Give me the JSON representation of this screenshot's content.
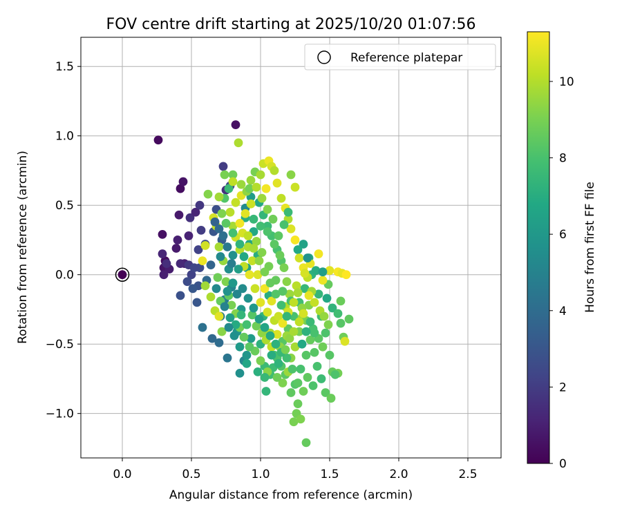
{
  "chart_data": {
    "type": "scatter",
    "title": "FOV centre drift starting at 2025/10/20 01:07:56",
    "xlabel": "Angular distance from reference (arcmin)",
    "ylabel": "Rotation from reference (arcmin)",
    "xlim": [
      -0.3,
      2.74
    ],
    "ylim": [
      -1.32,
      1.71
    ],
    "xticks": [
      0.0,
      0.5,
      1.0,
      1.5,
      2.0,
      2.5
    ],
    "yticks": [
      -1.0,
      -0.5,
      0.0,
      0.5,
      1.0,
      1.5
    ],
    "xtick_labels": [
      "0.0",
      "0.5",
      "1.0",
      "1.5",
      "2.0",
      "2.5"
    ],
    "ytick_labels": [
      "−1.0",
      "−0.5",
      "0.0",
      "0.5",
      "1.0",
      "1.5"
    ],
    "grid": true,
    "legend": {
      "position": "top-right",
      "label": "Reference platepar"
    },
    "reference_point": {
      "x": 0.0,
      "y": 0.0,
      "hours": 0
    },
    "colorbar": {
      "label": "Hours from first FF file",
      "range": [
        0,
        11.3
      ],
      "ticks": [
        0,
        2,
        4,
        6,
        8,
        10
      ],
      "tick_labels": [
        "0",
        "2",
        "4",
        "6",
        "8",
        "10"
      ],
      "colormap": "viridis"
    },
    "points": [
      [
        0.26,
        0.97,
        0.3
      ],
      [
        0.82,
        1.08,
        0.5
      ],
      [
        0.31,
        0.1,
        0.4
      ],
      [
        0.3,
        0.05,
        0.6
      ],
      [
        0.29,
        0.29,
        0.5
      ],
      [
        0.34,
        0.04,
        0.9
      ],
      [
        0.3,
        0.0,
        1.0
      ],
      [
        0.29,
        0.15,
        1.2
      ],
      [
        0.32,
        0.08,
        1.5
      ],
      [
        0.42,
        0.62,
        0.4
      ],
      [
        0.44,
        0.67,
        0.6
      ],
      [
        0.39,
        0.19,
        0.8
      ],
      [
        0.4,
        0.25,
        1.0
      ],
      [
        0.41,
        0.43,
        0.8
      ],
      [
        0.45,
        0.08,
        1.0
      ],
      [
        0.42,
        0.08,
        1.3
      ],
      [
        0.48,
        0.28,
        1.1
      ],
      [
        0.49,
        0.41,
        1.6
      ],
      [
        0.53,
        0.45,
        1.2
      ],
      [
        0.48,
        0.07,
        1.9
      ],
      [
        0.5,
        0.0,
        2.2
      ],
      [
        0.47,
        -0.05,
        2.6
      ],
      [
        0.42,
        -0.15,
        2.8
      ],
      [
        0.55,
        -0.08,
        2.9
      ],
      [
        0.51,
        -0.1,
        3.1
      ],
      [
        0.55,
        0.18,
        2.2
      ],
      [
        0.56,
        0.05,
        2.5
      ],
      [
        0.54,
        -0.2,
        3.0
      ],
      [
        0.57,
        0.32,
        2.0
      ],
      [
        0.6,
        0.22,
        2.7
      ],
      [
        0.56,
        0.5,
        1.8
      ],
      [
        0.52,
        0.05,
        2.4
      ],
      [
        0.73,
        0.78,
        2.0
      ],
      [
        0.78,
        0.64,
        2.4
      ],
      [
        0.75,
        0.61,
        1.6
      ],
      [
        0.68,
        0.47,
        2.7
      ],
      [
        0.66,
        0.31,
        3.0
      ],
      [
        0.72,
        0.25,
        3.3
      ],
      [
        0.64,
        0.07,
        3.6
      ],
      [
        0.61,
        -0.04,
        3.8
      ],
      [
        0.58,
        -0.38,
        4.2
      ],
      [
        0.65,
        -0.46,
        3.8
      ],
      [
        0.7,
        -0.49,
        4.0
      ],
      [
        0.76,
        -0.6,
        4.4
      ],
      [
        0.71,
        -0.3,
        4.6
      ],
      [
        0.74,
        -0.18,
        4.8
      ],
      [
        0.79,
        -0.09,
        5.1
      ],
      [
        0.68,
        -0.1,
        5.3
      ],
      [
        0.77,
        0.04,
        5.5
      ],
      [
        0.8,
        0.14,
        5.6
      ],
      [
        0.83,
        -0.41,
        5.8
      ],
      [
        0.85,
        -0.71,
        5.6
      ],
      [
        0.88,
        -0.62,
        5.2
      ],
      [
        0.9,
        -0.58,
        5.9
      ],
      [
        0.93,
        -0.46,
        6.2
      ],
      [
        0.86,
        -0.25,
        6.0
      ],
      [
        0.9,
        0.05,
        6.4
      ],
      [
        0.92,
        0.22,
        6.6
      ],
      [
        0.95,
        0.31,
        6.8
      ],
      [
        0.98,
        0.14,
        7.0
      ],
      [
        0.89,
        0.48,
        5.4
      ],
      [
        0.93,
        0.56,
        6.2
      ],
      [
        0.99,
        0.52,
        6.8
      ],
      [
        1.02,
        0.43,
        7.4
      ],
      [
        1.05,
        0.35,
        7.6
      ],
      [
        1.08,
        0.28,
        7.9
      ],
      [
        1.12,
        0.18,
        8.0
      ],
      [
        1.15,
        0.1,
        8.2
      ],
      [
        1.06,
        -0.15,
        7.0
      ],
      [
        1.02,
        -0.3,
        7.3
      ],
      [
        1.0,
        -0.5,
        7.2
      ],
      [
        1.03,
        -0.66,
        7.6
      ],
      [
        1.07,
        -0.72,
        7.8
      ],
      [
        1.04,
        -0.84,
        7.4
      ],
      [
        1.12,
        -0.6,
        8.1
      ],
      [
        1.16,
        -0.48,
        8.3
      ],
      [
        1.2,
        -0.39,
        8.5
      ],
      [
        1.24,
        -0.3,
        8.0
      ],
      [
        1.28,
        -0.2,
        7.8
      ],
      [
        1.32,
        -0.1,
        7.5
      ],
      [
        1.37,
        0.0,
        7.2
      ],
      [
        1.35,
        0.12,
        6.9
      ],
      [
        1.31,
        0.22,
        6.5
      ],
      [
        1.27,
        0.18,
        6.8
      ],
      [
        1.4,
        0.03,
        7.0
      ],
      [
        1.42,
        -0.14,
        7.4
      ],
      [
        1.44,
        -0.3,
        7.8
      ],
      [
        1.47,
        -0.42,
        8.1
      ],
      [
        1.5,
        -0.58,
        8.3
      ],
      [
        1.52,
        -0.7,
        8.6
      ],
      [
        1.47,
        -0.85,
        8.4
      ],
      [
        1.51,
        -0.89,
        8.7
      ],
      [
        1.56,
        -0.71,
        8.9
      ],
      [
        1.54,
        -0.72,
        8.1
      ],
      [
        1.6,
        -0.45,
        8.8
      ],
      [
        1.64,
        -0.32,
        8.5
      ],
      [
        1.58,
        -0.19,
        8.7
      ],
      [
        1.49,
        -0.07,
        8.6
      ],
      [
        1.38,
        -0.39,
        8.0
      ],
      [
        1.33,
        -0.58,
        8.3
      ],
      [
        1.29,
        -0.68,
        8.0
      ],
      [
        1.25,
        -0.79,
        8.2
      ],
      [
        1.22,
        -0.85,
        8.5
      ],
      [
        1.27,
        -0.93,
        8.7
      ],
      [
        1.26,
        -1.0,
        8.9
      ],
      [
        1.24,
        -1.06,
        9.0
      ],
      [
        1.29,
        -1.04,
        9.1
      ],
      [
        1.33,
        -1.21,
        8.6
      ],
      [
        1.18,
        -0.72,
        8.4
      ],
      [
        1.15,
        -0.66,
        8.2
      ],
      [
        1.1,
        -0.58,
        8.0
      ],
      [
        1.09,
        -0.67,
        7.7
      ],
      [
        1.14,
        -0.52,
        9.4
      ],
      [
        1.19,
        -0.44,
        9.6
      ],
      [
        1.07,
        -0.42,
        9.8
      ],
      [
        1.1,
        -0.33,
        10.2
      ],
      [
        1.05,
        -0.27,
        10.6
      ],
      [
        1.0,
        -0.2,
        10.8
      ],
      [
        0.96,
        -0.1,
        10.4
      ],
      [
        0.92,
        0.0,
        10.9
      ],
      [
        0.88,
        0.06,
        10.2
      ],
      [
        0.85,
        0.18,
        10.0
      ],
      [
        0.82,
        0.27,
        10.5
      ],
      [
        0.8,
        0.35,
        9.8
      ],
      [
        0.78,
        0.45,
        10.1
      ],
      [
        0.82,
        0.52,
        10.3
      ],
      [
        0.86,
        0.57,
        10.8
      ],
      [
        0.9,
        0.6,
        9.4
      ],
      [
        0.93,
        0.68,
        9.6
      ],
      [
        0.96,
        0.74,
        9.0
      ],
      [
        1.02,
        0.8,
        10.4
      ],
      [
        1.06,
        0.82,
        11.0
      ],
      [
        1.08,
        0.78,
        10.6
      ],
      [
        1.04,
        0.62,
        11.1
      ],
      [
        1.12,
        0.66,
        10.8
      ],
      [
        1.15,
        0.55,
        10.2
      ],
      [
        1.18,
        0.48,
        10.9
      ],
      [
        1.2,
        0.4,
        9.9
      ],
      [
        1.22,
        0.33,
        10.7
      ],
      [
        1.25,
        0.25,
        11.2
      ],
      [
        1.28,
        0.12,
        10.5
      ],
      [
        1.31,
        0.05,
        11.0
      ],
      [
        1.34,
        -0.02,
        10.2
      ],
      [
        1.37,
        -0.12,
        9.7
      ],
      [
        1.35,
        -0.22,
        9.2
      ],
      [
        1.3,
        -0.31,
        9.5
      ],
      [
        1.28,
        -0.41,
        9.0
      ],
      [
        1.25,
        -0.52,
        9.8
      ],
      [
        1.22,
        -0.6,
        9.3
      ],
      [
        1.2,
        -0.7,
        9.6
      ],
      [
        1.16,
        -0.78,
        9.1
      ],
      [
        1.12,
        -0.74,
        8.8
      ],
      [
        1.05,
        -0.7,
        9.3
      ],
      [
        1.0,
        -0.62,
        9.0
      ],
      [
        0.96,
        -0.55,
        8.7
      ],
      [
        0.92,
        -0.52,
        8.4
      ],
      [
        0.88,
        -0.45,
        8.6
      ],
      [
        0.85,
        -0.38,
        8.9
      ],
      [
        0.82,
        -0.28,
        9.2
      ],
      [
        0.79,
        -0.22,
        9.0
      ],
      [
        0.77,
        -0.15,
        8.5
      ],
      [
        0.75,
        -0.05,
        9.1
      ],
      [
        0.73,
        0.1,
        9.5
      ],
      [
        0.7,
        0.2,
        9.8
      ],
      [
        0.68,
        0.35,
        10.3
      ],
      [
        0.66,
        0.41,
        10.6
      ],
      [
        0.62,
        0.58,
        9.2
      ],
      [
        0.6,
        0.21,
        10.5
      ],
      [
        0.58,
        0.1,
        11.0
      ],
      [
        0.6,
        -0.08,
        9.7
      ],
      [
        0.64,
        -0.16,
        9.9
      ],
      [
        0.67,
        -0.26,
        10.1
      ],
      [
        0.7,
        -0.3,
        10.8
      ],
      [
        0.72,
        -0.41,
        9.3
      ],
      [
        0.71,
        -0.19,
        8.6
      ],
      [
        0.69,
        -0.02,
        8.8
      ],
      [
        0.74,
        0.55,
        8.2
      ],
      [
        0.77,
        0.62,
        7.6
      ],
      [
        0.8,
        0.72,
        8.8
      ],
      [
        0.84,
        0.95,
        9.9
      ],
      [
        0.89,
        0.41,
        7.0
      ],
      [
        0.95,
        0.4,
        7.5
      ],
      [
        1.0,
        0.35,
        7.8
      ],
      [
        1.05,
        0.31,
        8.1
      ],
      [
        1.1,
        0.22,
        8.4
      ],
      [
        1.14,
        0.14,
        8.7
      ],
      [
        1.17,
        0.05,
        9.0
      ],
      [
        1.19,
        -0.05,
        9.3
      ],
      [
        1.21,
        -0.14,
        9.6
      ],
      [
        1.18,
        -0.23,
        10.0
      ],
      [
        1.13,
        -0.3,
        10.4
      ],
      [
        1.08,
        -0.19,
        10.8
      ],
      [
        1.03,
        -0.1,
        11.1
      ],
      [
        0.98,
        0.0,
        10.7
      ],
      [
        0.94,
        0.1,
        10.3
      ],
      [
        0.91,
        0.2,
        9.9
      ],
      [
        0.97,
        0.24,
        9.5
      ],
      [
        1.01,
        0.16,
        9.2
      ],
      [
        1.06,
        0.06,
        8.9
      ],
      [
        1.11,
        -0.04,
        8.6
      ],
      [
        1.16,
        -0.12,
        8.3
      ],
      [
        1.22,
        -0.19,
        8.0
      ],
      [
        1.26,
        -0.08,
        10.1
      ],
      [
        1.32,
        0.01,
        10.6
      ],
      [
        1.36,
        0.08,
        10.9
      ],
      [
        1.42,
        0.15,
        11.1
      ],
      [
        1.45,
        -0.04,
        11.0
      ],
      [
        1.5,
        0.03,
        10.8
      ],
      [
        1.56,
        0.02,
        11.2
      ],
      [
        1.59,
        0.01,
        10.9
      ],
      [
        1.62,
        0.0,
        11.3
      ],
      [
        1.61,
        -0.48,
        10.7
      ],
      [
        1.25,
        0.63,
        10.4
      ],
      [
        1.22,
        0.72,
        9.3
      ],
      [
        1.1,
        0.75,
        10.0
      ],
      [
        1.0,
        0.72,
        9.8
      ],
      [
        0.92,
        0.62,
        8.9
      ],
      [
        0.86,
        0.65,
        9.6
      ],
      [
        0.8,
        0.67,
        10.2
      ],
      [
        0.74,
        0.72,
        9.0
      ],
      [
        0.7,
        0.56,
        9.7
      ],
      [
        0.72,
        0.44,
        9.1
      ],
      [
        0.75,
        0.37,
        8.4
      ],
      [
        0.8,
        0.3,
        7.9
      ],
      [
        0.85,
        0.22,
        7.3
      ],
      [
        0.88,
        0.13,
        6.8
      ],
      [
        0.84,
        0.04,
        6.3
      ],
      [
        0.8,
        -0.06,
        6.0
      ],
      [
        0.76,
        -0.12,
        5.7
      ],
      [
        0.78,
        -0.31,
        6.3
      ],
      [
        0.82,
        -0.36,
        6.9
      ],
      [
        0.86,
        -0.29,
        7.4
      ],
      [
        0.9,
        -0.36,
        7.9
      ],
      [
        0.94,
        -0.29,
        8.3
      ],
      [
        0.97,
        -0.37,
        8.8
      ],
      [
        1.01,
        -0.42,
        9.4
      ],
      [
        1.04,
        -0.47,
        9.9
      ],
      [
        1.08,
        -0.52,
        10.3
      ],
      [
        1.12,
        -0.43,
        10.7
      ],
      [
        1.16,
        -0.35,
        11.0
      ],
      [
        1.2,
        -0.27,
        10.6
      ],
      [
        1.24,
        -0.2,
        10.2
      ],
      [
        1.27,
        -0.13,
        9.8
      ],
      [
        1.3,
        -0.24,
        9.4
      ],
      [
        1.33,
        -0.33,
        9.0
      ],
      [
        1.36,
        -0.47,
        8.6
      ],
      [
        1.39,
        -0.56,
        8.3
      ],
      [
        1.41,
        -0.66,
        8.0
      ],
      [
        1.44,
        -0.75,
        7.7
      ],
      [
        1.38,
        -0.8,
        8.1
      ],
      [
        1.34,
        -0.74,
        8.5
      ],
      [
        1.31,
        -0.84,
        8.8
      ],
      [
        1.27,
        -0.78,
        8.4
      ],
      [
        1.23,
        -0.68,
        8.1
      ],
      [
        1.19,
        -0.6,
        7.8
      ],
      [
        1.15,
        -0.56,
        7.5
      ],
      [
        1.11,
        -0.5,
        7.2
      ],
      [
        1.07,
        -0.44,
        6.9
      ],
      [
        1.03,
        -0.38,
        6.6
      ],
      [
        0.99,
        -0.32,
        6.3
      ],
      [
        0.95,
        -0.24,
        6.0
      ],
      [
        0.91,
        -0.17,
        5.7
      ],
      [
        0.87,
        -0.1,
        5.4
      ],
      [
        0.83,
        -0.14,
        5.1
      ],
      [
        0.79,
        0.08,
        4.8
      ],
      [
        0.76,
        0.2,
        4.5
      ],
      [
        0.73,
        0.28,
        4.2
      ],
      [
        0.7,
        0.33,
        3.9
      ],
      [
        0.67,
        0.38,
        3.6
      ],
      [
        0.71,
        0.13,
        5.3
      ],
      [
        0.74,
        -0.23,
        5.0
      ],
      [
        0.77,
        -0.38,
        5.3
      ],
      [
        0.81,
        -0.44,
        5.6
      ],
      [
        0.85,
        -0.52,
        6.1
      ],
      [
        0.9,
        -0.64,
        6.7
      ],
      [
        0.98,
        -0.7,
        7.1
      ],
      [
        1.03,
        -0.74,
        7.5
      ],
      [
        1.08,
        -0.58,
        7.0
      ],
      [
        1.13,
        -0.64,
        7.3
      ],
      [
        1.18,
        -0.54,
        9.0
      ],
      [
        1.21,
        -0.46,
        9.4
      ],
      [
        1.24,
        -0.41,
        9.8
      ],
      [
        1.28,
        -0.34,
        10.2
      ],
      [
        1.31,
        -0.28,
        10.6
      ],
      [
        1.35,
        -0.15,
        10.9
      ],
      [
        1.39,
        -0.2,
        10.3
      ],
      [
        1.43,
        -0.26,
        9.9
      ],
      [
        1.46,
        -0.3,
        9.5
      ],
      [
        1.49,
        -0.36,
        9.1
      ],
      [
        1.45,
        -0.52,
        8.8
      ],
      [
        1.42,
        -0.46,
        8.4
      ],
      [
        1.39,
        -0.42,
        8.0
      ],
      [
        1.36,
        -0.34,
        7.6
      ],
      [
        1.33,
        -0.41,
        7.2
      ],
      [
        1.3,
        -0.5,
        6.8
      ],
      [
        1.34,
        0.12,
        5.8
      ],
      [
        1.45,
        0.02,
        6.3
      ],
      [
        1.48,
        -0.17,
        6.8
      ],
      [
        1.52,
        -0.24,
        7.3
      ],
      [
        1.56,
        -0.28,
        7.8
      ],
      [
        1.58,
        -0.35,
        8.3
      ],
      [
        1.2,
        0.45,
        7.6
      ],
      [
        1.17,
        0.36,
        8.0
      ],
      [
        1.13,
        0.28,
        8.4
      ],
      [
        1.09,
        0.4,
        8.8
      ],
      [
        1.05,
        0.47,
        9.2
      ],
      [
        1.01,
        0.55,
        9.6
      ],
      [
        0.97,
        0.63,
        10.0
      ],
      [
        0.93,
        0.51,
        10.4
      ],
      [
        0.89,
        0.44,
        10.8
      ],
      [
        0.85,
        0.37,
        11.1
      ],
      [
        0.87,
        0.3,
        10.6
      ],
      [
        0.91,
        0.28,
        10.2
      ],
      [
        0.95,
        0.19,
        9.8
      ],
      [
        0.99,
        0.1,
        9.4
      ],
      [
        1.03,
        0.02,
        9.0
      ],
      [
        1.07,
        -0.06,
        8.6
      ],
      [
        1.11,
        -0.14,
        8.2
      ],
      [
        1.15,
        -0.22,
        7.8
      ],
      [
        1.19,
        -0.3,
        7.4
      ]
    ]
  }
}
